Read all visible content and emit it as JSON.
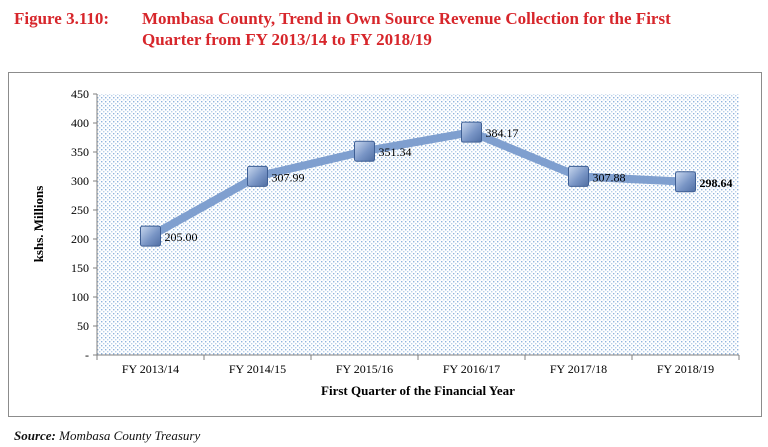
{
  "figure": {
    "number": "Figure 3.110:",
    "title_line1": "Mombasa County, Trend in Own Source Revenue Collection for the First",
    "title_line2": "Quarter from FY 2013/14 to FY 2018/19"
  },
  "chart_data": {
    "type": "line",
    "categories": [
      "FY 2013/14",
      "FY 2014/15",
      "FY 2015/16",
      "FY 2016/17",
      "FY 2017/18",
      "FY 2018/19"
    ],
    "values": [
      205.0,
      307.99,
      351.34,
      384.17,
      307.88,
      298.64
    ],
    "data_labels": [
      "205.00",
      "307.99",
      "351.34",
      "384.17",
      "307.88",
      "298.64"
    ],
    "xlabel": "First Quarter of the Financial Year",
    "ylabel": "kshs. Millions",
    "ylim": [
      0,
      450
    ],
    "yticks": [
      0,
      50,
      100,
      150,
      200,
      250,
      300,
      350,
      400,
      450
    ],
    "ytick_labels": [
      "-",
      "50",
      "100",
      "150",
      "200",
      "250",
      "300",
      "350",
      "400",
      "450"
    ],
    "grid": false,
    "line_color": "#7f9fcf",
    "marker_color": "#7a96c6",
    "plot_background": "dotted-blue"
  },
  "source": {
    "label": "Source:",
    "text": " Mombasa County Treasury"
  }
}
